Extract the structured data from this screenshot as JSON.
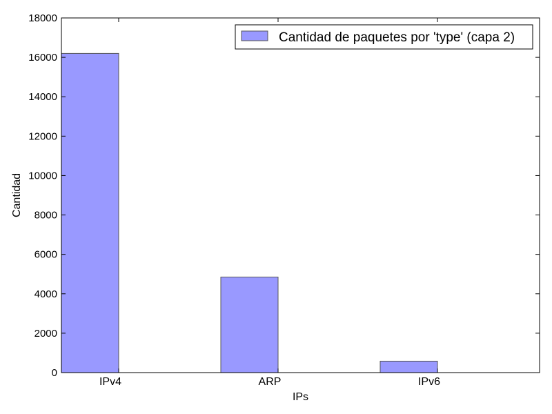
{
  "chart_data": {
    "type": "bar",
    "categories": [
      "IPv4",
      "ARP",
      "IPv6"
    ],
    "series": [
      {
        "name": "Cantidad de paquetes por 'type' (capa 2)",
        "values": [
          16200,
          4850,
          580
        ],
        "color": "#9999ff"
      }
    ],
    "xlabel": "IPs",
    "ylabel": "Cantidad",
    "ylim": [
      0,
      18000
    ],
    "yticks": [
      0,
      2000,
      4000,
      6000,
      8000,
      10000,
      12000,
      14000,
      16000,
      18000
    ],
    "grid": false,
    "legend_position": "top-right"
  }
}
